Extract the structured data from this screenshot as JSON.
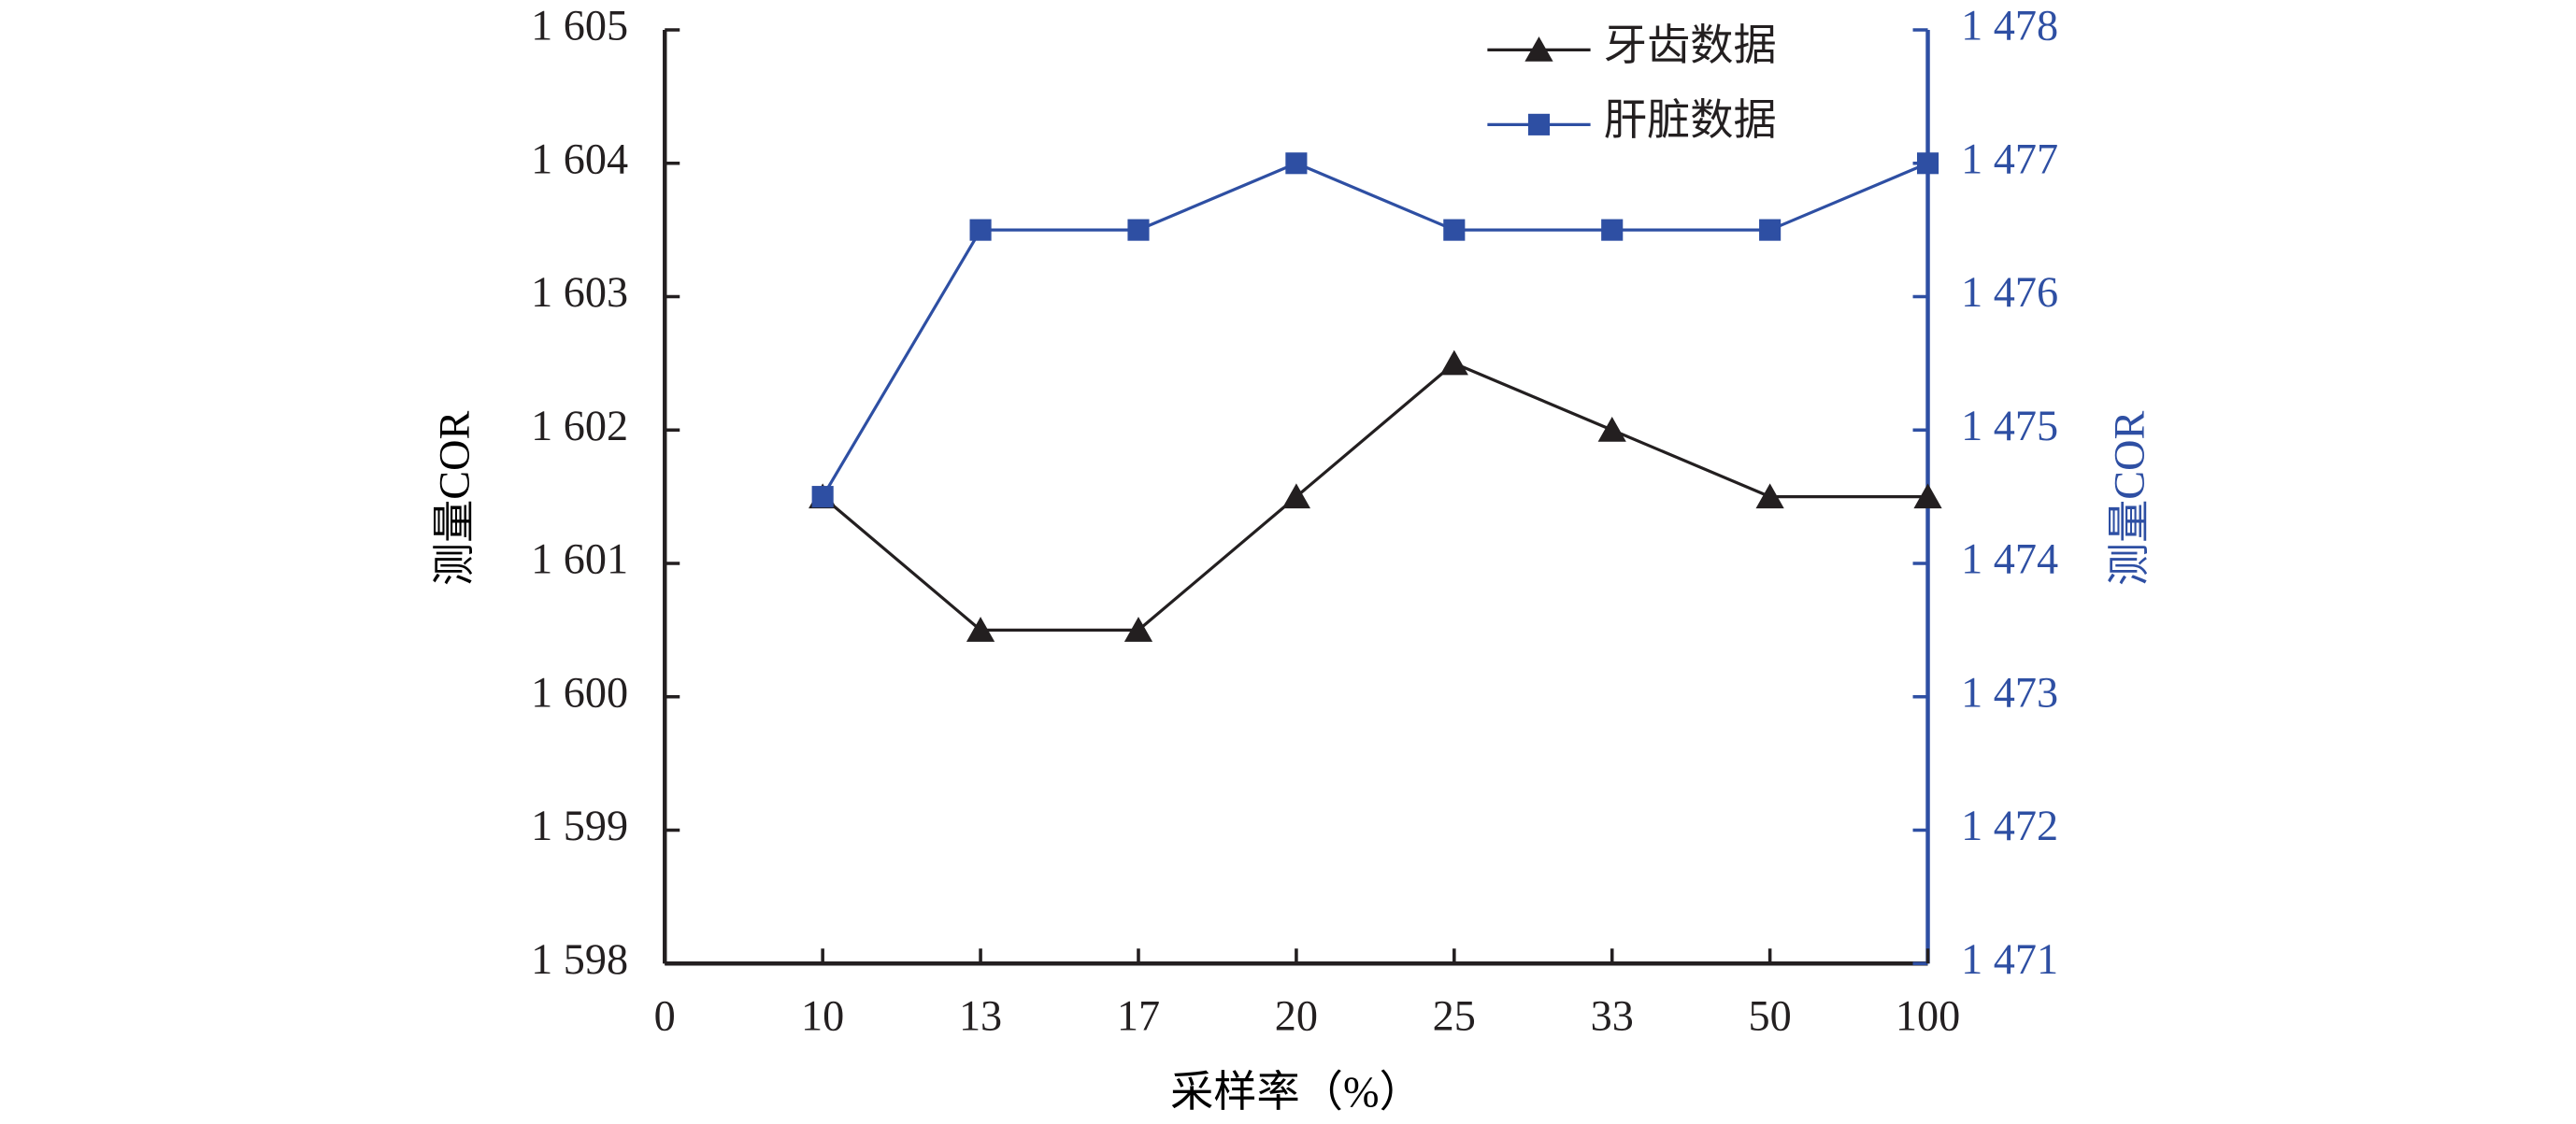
{
  "chart_data": {
    "type": "line",
    "x_label": "采样率（%）",
    "y_label": "测量COR",
    "y2_label": "测量COR",
    "categories": [
      "0",
      "10",
      "13",
      "17",
      "20",
      "25",
      "33",
      "50",
      "100"
    ],
    "ylim": [
      1598,
      1605
    ],
    "yticks": [
      {
        "value": 1598,
        "label": "1 598"
      },
      {
        "value": 1599,
        "label": "1 599"
      },
      {
        "value": 1600,
        "label": "1 600"
      },
      {
        "value": 1601,
        "label": "1 601"
      },
      {
        "value": 1602,
        "label": "1 602"
      },
      {
        "value": 1603,
        "label": "1 603"
      },
      {
        "value": 1604,
        "label": "1 604"
      },
      {
        "value": 1605,
        "label": "1 605"
      }
    ],
    "y2lim": [
      1471,
      1478
    ],
    "y2ticks": [
      {
        "value": 1471,
        "label": "1 471"
      },
      {
        "value": 1472,
        "label": "1 472"
      },
      {
        "value": 1473,
        "label": "1 473"
      },
      {
        "value": 1474,
        "label": "1 474"
      },
      {
        "value": 1475,
        "label": "1 475"
      },
      {
        "value": 1476,
        "label": "1 476"
      },
      {
        "value": 1477,
        "label": "1 477"
      },
      {
        "value": 1478,
        "label": "1 478"
      }
    ],
    "y2color": "#2e4fa3",
    "legend": "upper right",
    "series": [
      {
        "name": "牙齿数据",
        "color": "#231f20",
        "marker": "triangle",
        "values": [
          null,
          1601.5,
          1600.5,
          1600.5,
          1601.5,
          1602.5,
          1602,
          1601.5,
          1601.5
        ]
      },
      {
        "name": "肝脏数据",
        "color": "#2e4fa3",
        "marker": "square",
        "axis": "y2",
        "values": [
          null,
          1474.5,
          1476.5,
          1476.5,
          1477,
          1476.5,
          1476.5,
          1476.5,
          1477
        ]
      }
    ]
  }
}
